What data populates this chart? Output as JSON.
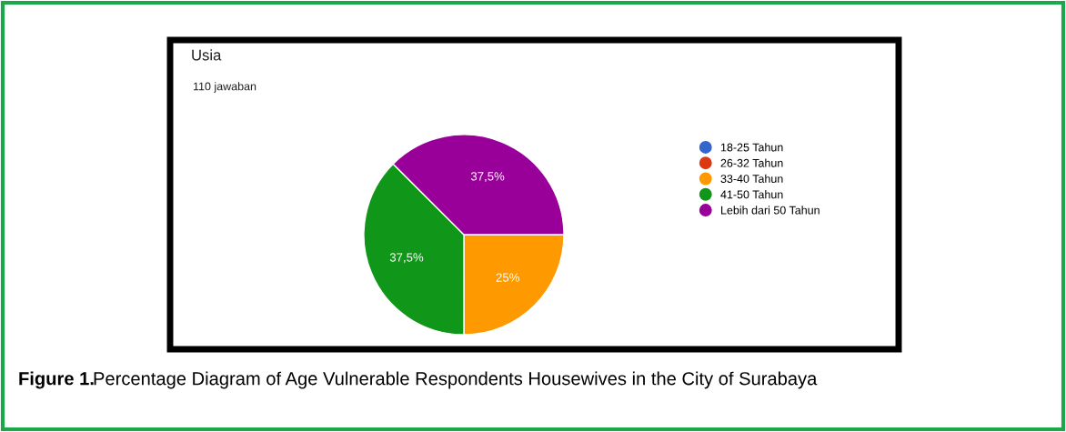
{
  "chart_data": {
    "type": "pie",
    "title": "Usia",
    "subtitle": "110 jawaban",
    "categories": [
      "18-25 Tahun",
      "26-32 Tahun",
      "33-40 Tahun",
      "41-50 Tahun",
      "Lebih dari 50 Tahun"
    ],
    "values": [
      0,
      0,
      25,
      37.5,
      37.5
    ],
    "colors": [
      "#3366cc",
      "#dc3912",
      "#ff9900",
      "#109618",
      "#990099"
    ],
    "value_labels": [
      null,
      null,
      "25%",
      "37,5%",
      "37,5%"
    ],
    "legend": "right",
    "annotations": [
      "Figure 1.",
      "Percentage Diagram of Age Vulnerable Respondents Housewives in the City of Surabaya"
    ]
  }
}
